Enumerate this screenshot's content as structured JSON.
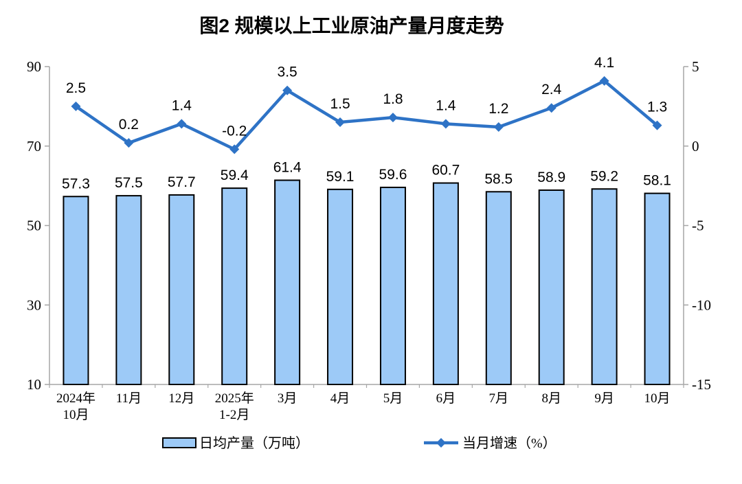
{
  "title": "图2  规模以上工业原油产量月度走势",
  "colors": {
    "bar_fill": "#9DCAF7",
    "bar_border": "#000000",
    "line": "#2E73C6",
    "axis": "#A6A6A6",
    "text": "#000000"
  },
  "legend": {
    "items": [
      {
        "label": "日均产量（万吨）",
        "type": "bar"
      },
      {
        "label": "当月增速（%）",
        "type": "line"
      }
    ]
  },
  "chart_data": {
    "type": "combo (bar + line)",
    "title": "图2  规模以上工业原油产量月度走势",
    "categories": [
      [
        "2024年",
        "10月"
      ],
      [
        "11月"
      ],
      [
        "12月"
      ],
      [
        "2025年",
        "1-2月"
      ],
      [
        "3月"
      ],
      [
        "4月"
      ],
      [
        "5月"
      ],
      [
        "6月"
      ],
      [
        "7月"
      ],
      [
        "8月"
      ],
      [
        "9月"
      ],
      [
        "10月"
      ]
    ],
    "series": [
      {
        "name": "日均产量（万吨）",
        "type": "bar",
        "axis": "left",
        "values": [
          57.3,
          57.5,
          57.7,
          59.4,
          61.4,
          59.1,
          59.6,
          60.7,
          58.5,
          58.9,
          59.2,
          58.1
        ]
      },
      {
        "name": "当月增速（%）",
        "type": "line",
        "axis": "right",
        "values": [
          2.5,
          0.2,
          1.4,
          -0.2,
          3.5,
          1.5,
          1.8,
          1.4,
          1.2,
          2.4,
          4.1,
          1.3
        ]
      }
    ],
    "left_axis": {
      "min": 10,
      "max": 90,
      "ticks": [
        10,
        30,
        50,
        70,
        90
      ]
    },
    "right_axis": {
      "min": -15,
      "max": 5,
      "ticks": [
        -15,
        -10,
        -5,
        0,
        5
      ]
    },
    "grid": false,
    "legend_position": "bottom"
  }
}
